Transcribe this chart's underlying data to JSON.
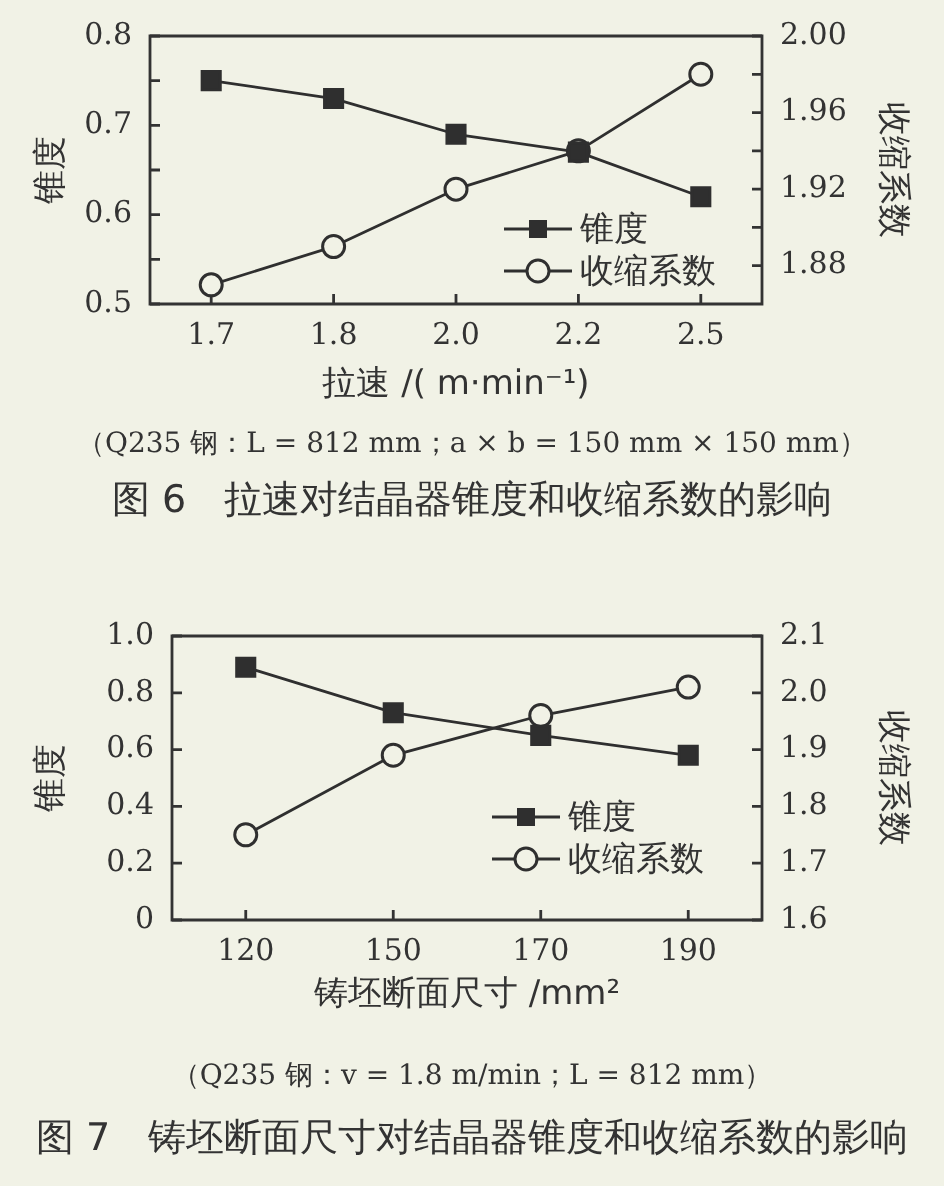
{
  "chart_data": [
    {
      "type": "line",
      "title": "图 6　拉速对结晶器锥度和收缩系数的影响",
      "annotations": [
        "（Q235 钢：L = 812 mm；a × b = 150 mm × 150 mm）"
      ],
      "xlabel": "拉速 /( m·min⁻¹)",
      "ylabel": "锥度",
      "y2label": "收缩系数",
      "categories": [
        "1.7",
        "1.8",
        "2.0",
        "2.2",
        "2.5"
      ],
      "series": [
        {
          "name": "锥度",
          "color": "#2f2f2f",
          "marker": "square",
          "values": [
            0.75,
            0.73,
            0.69,
            0.67,
            0.62
          ]
        },
        {
          "name": "收缩系数",
          "color": "#2f2f2f",
          "marker": "circle",
          "axis": "y2",
          "values": [
            1.87,
            1.89,
            1.92,
            1.94,
            1.98
          ]
        }
      ],
      "ylim": [
        0.5,
        0.8
      ],
      "yticks": [
        0.5,
        {
          "value": 0.55,
          "label": null
        },
        0.6,
        {
          "value": 0.65,
          "label": null
        },
        0.7,
        {
          "value": 0.75,
          "label": null
        },
        0.8
      ],
      "y2lim": [
        1.86,
        2.0
      ],
      "y2ticks": [
        1.88,
        {
          "value": 1.9,
          "label": null
        },
        1.92,
        {
          "value": 1.94,
          "label": null
        },
        1.96,
        {
          "value": 1.98,
          "label": null
        },
        {
          "value": 2.0,
          "label": "2.00"
        }
      ],
      "legend": "bottom right"
    },
    {
      "type": "line",
      "title": "图 7　铸坯断面尺寸对结晶器锥度和收缩系数的影响",
      "annotations": [
        "（Q235 钢：v = 1.8 m/min；L = 812 mm）"
      ],
      "xlabel": "铸坯断面尺寸 /mm²",
      "ylabel": "锥度",
      "y2label": "收缩系数",
      "categories": [
        "120",
        "150",
        "170",
        "190"
      ],
      "series": [
        {
          "name": "锥度",
          "color": "#2f2f2f",
          "marker": "square",
          "values": [
            0.89,
            0.73,
            0.65,
            0.58
          ]
        },
        {
          "name": "收缩系数",
          "color": "#2f2f2f",
          "marker": "circle",
          "axis": "y2",
          "values": [
            1.75,
            1.89,
            1.96,
            2.01
          ]
        }
      ],
      "ylim": [
        0,
        1.0
      ],
      "yticks": [
        0,
        0.2,
        0.4,
        0.6,
        0.8,
        {
          "value": 1.0,
          "label": "1.0"
        }
      ],
      "y2lim": [
        1.6,
        2.1
      ],
      "y2ticks": [
        1.6,
        1.7,
        1.8,
        1.9,
        {
          "value": 2.0,
          "label": "2.0"
        },
        2.1
      ],
      "legend": "bottom right"
    }
  ]
}
